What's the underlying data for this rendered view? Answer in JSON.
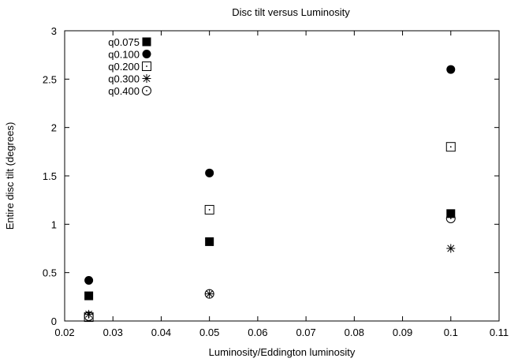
{
  "chart_data": {
    "type": "scatter",
    "title": "Disc tilt versus Luminosity",
    "xlabel": "Luminosity/Eddington luminosity",
    "ylabel": "Entire disc tilt (degrees)",
    "xlim": [
      0.02,
      0.11
    ],
    "ylim": [
      0,
      3
    ],
    "xticks": [
      0.02,
      0.03,
      0.04,
      0.05,
      0.06,
      0.07,
      0.08,
      0.09,
      0.1,
      0.11
    ],
    "xtick_labels": [
      "0.02",
      "0.03",
      "0.04",
      "0.05",
      "0.06",
      "0.07",
      "0.08",
      "0.09",
      "0.1",
      "0.11"
    ],
    "yticks": [
      0,
      0.5,
      1,
      1.5,
      2,
      2.5,
      3
    ],
    "ytick_labels": [
      "0",
      "0.5",
      "1",
      "1.5",
      "2",
      "2.5",
      "3"
    ],
    "grid": false,
    "legend_position": "top-left",
    "series": [
      {
        "name": "q0.075",
        "marker": "filled-square",
        "x": [
          0.025,
          0.05,
          0.1
        ],
        "y": [
          0.26,
          0.82,
          1.11
        ]
      },
      {
        "name": "q0.100",
        "marker": "filled-circle",
        "x": [
          0.025,
          0.05,
          0.1
        ],
        "y": [
          0.42,
          1.53,
          2.6
        ]
      },
      {
        "name": "q0.200",
        "marker": "open-square-dot",
        "x": [
          0.025,
          0.05,
          0.1
        ],
        "y": [
          0.04,
          1.15,
          1.8
        ]
      },
      {
        "name": "q0.300",
        "marker": "asterisk",
        "x": [
          0.025,
          0.05,
          0.1
        ],
        "y": [
          0.07,
          0.28,
          0.75
        ]
      },
      {
        "name": "q0.400",
        "marker": "open-circle-dot",
        "x": [
          0.025,
          0.05,
          0.1
        ],
        "y": [
          0.05,
          0.28,
          1.06
        ]
      }
    ]
  }
}
